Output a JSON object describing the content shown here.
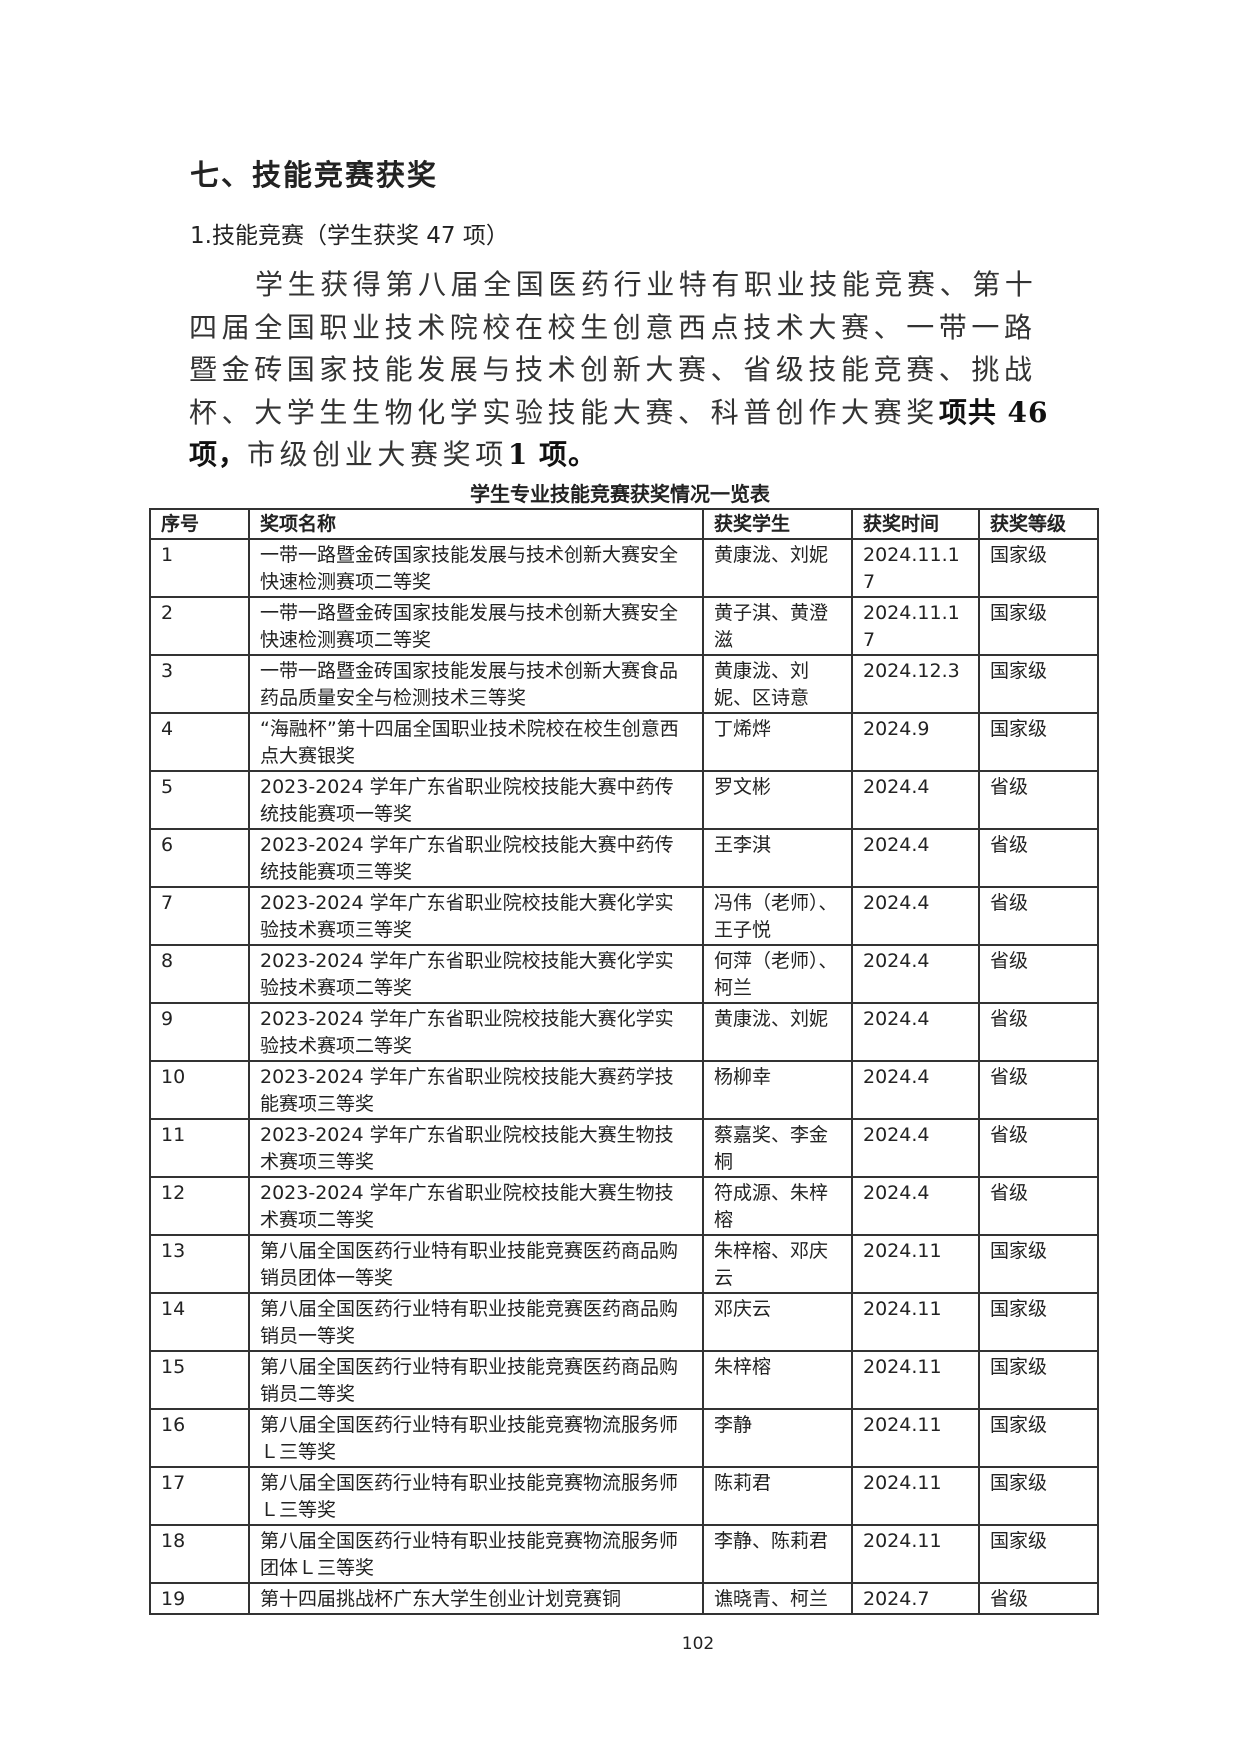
{
  "section_heading": "七、技能竞赛获奖",
  "subheading": "1.技能竞赛（学生获奖 47 项）",
  "paragraph": {
    "text_1": "学生获得第八届全国医药行业特有职业技能竞赛、第十四届全国职业技术院校在校生创意西点技术大赛、一带一路暨金砖国家技能发展与技术创新大赛、省级技能竞赛、挑战杯、大学生生物化学实验技能大赛、科普创作大赛奖",
    "bold_1": "项共 46 项，",
    "text_2": "市级创业大赛奖项",
    "bold_2": "1 项。"
  },
  "table": {
    "caption": "学生专业技能竞赛获奖情况一览表",
    "headers": [
      "序号",
      "奖项名称",
      "获奖学生",
      "获奖时间",
      "获奖等级"
    ],
    "rows": [
      [
        "1",
        "一带一路暨金砖国家技能发展与技术创新大赛安全快速检测赛项二等奖",
        "黄康泷、刘妮",
        "2024.11.17",
        "国家级"
      ],
      [
        "2",
        "一带一路暨金砖国家技能发展与技术创新大赛安全快速检测赛项二等奖",
        "黄子淇、黄澄滋",
        "2024.11.17",
        "国家级"
      ],
      [
        "3",
        "一带一路暨金砖国家技能发展与技术创新大赛食品药品质量安全与检测技术三等奖",
        "黄康泷、刘妮、区诗意",
        "2024.12.3",
        "国家级"
      ],
      [
        "4",
        "“海融杯”第十四届全国职业技术院校在校生创意西点大赛银奖",
        "丁烯烨",
        "2024.9",
        "国家级"
      ],
      [
        "5",
        "2023-2024 学年广东省职业院校技能大赛中药传统技能赛项一等奖",
        "罗文彬",
        "2024.4",
        "省级"
      ],
      [
        "6",
        "2023-2024 学年广东省职业院校技能大赛中药传统技能赛项三等奖",
        "王李淇",
        "2024.4",
        "省级"
      ],
      [
        "7",
        "2023-2024 学年广东省职业院校技能大赛化学实验技术赛项三等奖",
        "冯伟（老师）、王子悦",
        "2024.4",
        "省级"
      ],
      [
        "8",
        "2023-2024 学年广东省职业院校技能大赛化学实验技术赛项二等奖",
        "何萍（老师）、柯兰",
        "2024.4",
        "省级"
      ],
      [
        "9",
        "2023-2024 学年广东省职业院校技能大赛化学实验技术赛项二等奖",
        "黄康泷、刘妮",
        "2024.4",
        "省级"
      ],
      [
        "10",
        "2023-2024 学年广东省职业院校技能大赛药学技能赛项三等奖",
        "杨柳幸",
        "2024.4",
        "省级"
      ],
      [
        "11",
        "2023-2024 学年广东省职业院校技能大赛生物技术赛项三等奖",
        "蔡嘉奖、李金桐",
        "2024.4",
        "省级"
      ],
      [
        "12",
        "2023-2024 学年广东省职业院校技能大赛生物技术赛项二等奖",
        "符成源、朱梓榕",
        "2024.4",
        "省级"
      ],
      [
        "13",
        "第八届全国医药行业特有职业技能竞赛医药商品购销员团体一等奖",
        "朱梓榕、邓庆云",
        "2024.11",
        "国家级"
      ],
      [
        "14",
        "第八届全国医药行业特有职业技能竞赛医药商品购销员一等奖",
        "邓庆云",
        "2024.11",
        "国家级"
      ],
      [
        "15",
        "第八届全国医药行业特有职业技能竞赛医药商品购销员二等奖",
        "朱梓榕",
        "2024.11",
        "国家级"
      ],
      [
        "16",
        "第八届全国医药行业特有职业技能竞赛物流服务师Ｌ三等奖",
        "李静",
        "2024.11",
        "国家级"
      ],
      [
        "17",
        "第八届全国医药行业特有职业技能竞赛物流服务师Ｌ三等奖",
        "陈莉君",
        "2024.11",
        "国家级"
      ],
      [
        "18",
        "第八届全国医药行业特有职业技能竞赛物流服务师团体Ｌ三等奖",
        "李静、陈莉君",
        "2024.11",
        "国家级"
      ],
      [
        "19",
        "第十四届挑战杯广东大学生创业计划竞赛铜",
        "谯晓青、柯兰",
        "2024.7",
        "省级"
      ]
    ]
  },
  "page_number": "102"
}
